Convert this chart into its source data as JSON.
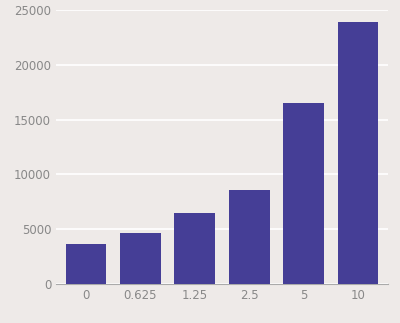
{
  "categories": [
    "0",
    "0.625",
    "1.25",
    "2.5",
    "5",
    "10"
  ],
  "values": [
    3700,
    4700,
    6500,
    8600,
    16500,
    23900
  ],
  "bar_color": "#453E96",
  "ylim": [
    0,
    25000
  ],
  "yticks": [
    0,
    5000,
    10000,
    15000,
    20000,
    25000
  ],
  "background_color": "#eeeae8",
  "grid_color": "#ffffff",
  "bar_width": 0.75,
  "tick_label_color": "#888888",
  "tick_fontsize": 8.5
}
